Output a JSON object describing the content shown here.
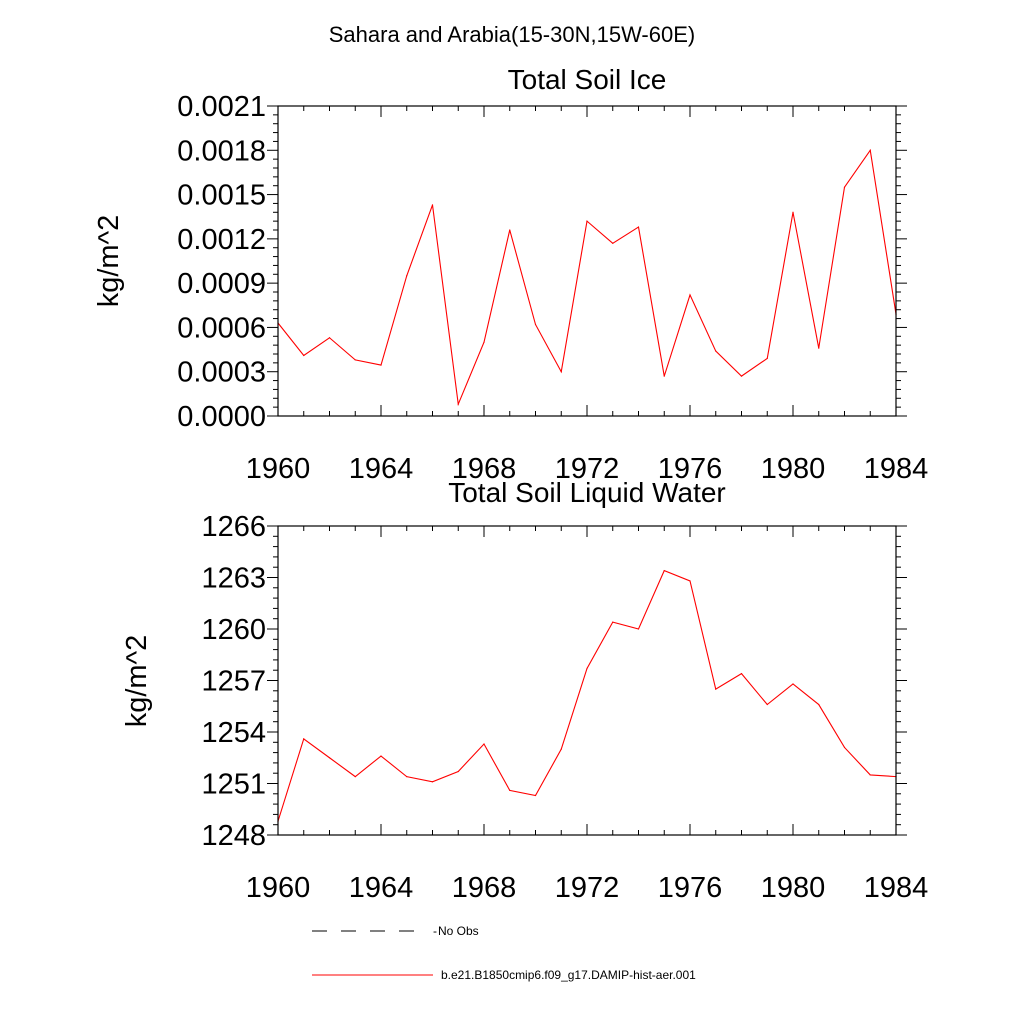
{
  "suptitle": "Sahara and Arabia(15-30N,15W-60E)",
  "colors": {
    "series": "#ff0000",
    "obs": "#000000",
    "axis": "#000000"
  },
  "chart_data": [
    {
      "type": "line",
      "title": "Total Soil Ice",
      "ylabel": "kg/m^2",
      "xlim": [
        1960,
        1984
      ],
      "ylim": [
        0.0,
        0.0021
      ],
      "xticks": [
        "1960",
        "1964",
        "1968",
        "1972",
        "1976",
        "1980",
        "1984"
      ],
      "yticks": [
        "0.0000",
        "0.0003",
        "0.0006",
        "0.0009",
        "0.0012",
        "0.0015",
        "0.0018",
        "0.0021"
      ],
      "x": [
        1960,
        1961,
        1962,
        1963,
        1964,
        1965,
        1966,
        1967,
        1968,
        1969,
        1970,
        1971,
        1972,
        1973,
        1974,
        1975,
        1976,
        1977,
        1978,
        1979,
        1980,
        1981,
        1982,
        1983,
        1984
      ],
      "series": [
        {
          "name": "b.e21.B1850cmip6.f09_g17.DAMIP-hist-aer.001",
          "values": [
            0.00063,
            0.00041,
            0.00053,
            0.00038,
            0.000345,
            0.00095,
            0.00143,
            8e-05,
            0.0005,
            0.00126,
            0.00062,
            0.0003,
            0.00132,
            0.00117,
            0.00128,
            0.00027,
            0.00082,
            0.00044,
            0.00027,
            0.00039,
            0.00138,
            0.00046,
            0.00155,
            0.0018,
            0.00069
          ]
        }
      ]
    },
    {
      "type": "line",
      "title": "Total Soil Liquid Water",
      "ylabel": "kg/m^2",
      "xlim": [
        1960,
        1984
      ],
      "ylim": [
        1248,
        1266
      ],
      "xticks": [
        "1960",
        "1964",
        "1968",
        "1972",
        "1976",
        "1980",
        "1984"
      ],
      "yticks": [
        "1248",
        "1251",
        "1254",
        "1257",
        "1260",
        "1263",
        "1266"
      ],
      "x": [
        1960,
        1961,
        1962,
        1963,
        1964,
        1965,
        1966,
        1967,
        1968,
        1969,
        1970,
        1971,
        1972,
        1973,
        1974,
        1975,
        1976,
        1977,
        1978,
        1979,
        1980,
        1981,
        1982,
        1983,
        1984
      ],
      "series": [
        {
          "name": "b.e21.B1850cmip6.f09_g17.DAMIP-hist-aer.001",
          "values": [
            1248.8,
            1253.6,
            1252.5,
            1251.4,
            1252.6,
            1251.4,
            1251.1,
            1251.7,
            1253.3,
            1250.6,
            1250.3,
            1253.0,
            1257.7,
            1260.4,
            1260.0,
            1263.4,
            1262.8,
            1256.5,
            1257.4,
            1255.6,
            1256.8,
            1255.6,
            1253.1,
            1251.5,
            1251.4
          ]
        }
      ]
    }
  ],
  "legend": [
    {
      "label": "No Obs",
      "style": "dashed",
      "color": "#000000"
    },
    {
      "label": "b.e21.B1850cmip6.f09_g17.DAMIP-hist-aer.001",
      "style": "solid",
      "color": "#ff0000"
    }
  ]
}
